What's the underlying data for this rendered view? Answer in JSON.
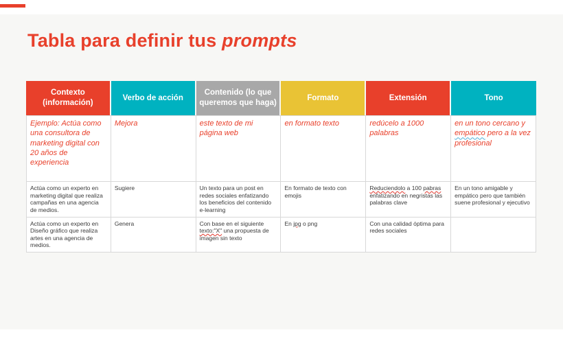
{
  "slide": {
    "title_regular": "Tabla para definir tus ",
    "title_italic": "prompts"
  },
  "colors": {
    "accent_red": "#e8402b",
    "header_teal": "#00b2c0",
    "header_gray": "#a8a8a8",
    "header_yellow": "#e9c335",
    "card_background": "#f7f7f5",
    "cell_border": "#d8d8d8",
    "body_text": "#3a3a3a",
    "spellcheck_underline": "#e0352b",
    "blue_underline": "#4fb0d8"
  },
  "table": {
    "headers": [
      {
        "label": "Contexto (información)",
        "color": "red"
      },
      {
        "label": "Verbo de acción",
        "color": "teal"
      },
      {
        "label": "Contenido (lo que queremos que haga)",
        "color": "gray"
      },
      {
        "label": "Formato",
        "color": "yellow"
      },
      {
        "label": "Extensión",
        "color": "red"
      },
      {
        "label": "Tono",
        "color": "teal"
      }
    ],
    "example_row": {
      "contexto": "Ejemplo: Actúa como una consultora de marketing digital con 20 años de experiencia",
      "verbo": "Mejora",
      "contenido": "este texto de mi página web",
      "formato": "en formato texto",
      "extension": "redúcelo a 1000 palabras",
      "tono_pre": "en un tono cercano y ",
      "tono_underlined": "empático",
      "tono_post": " pero a la vez profesional"
    },
    "row2": {
      "contexto": "Actúa como un experto en marketing digital que realiza campañas en una agencia de medios.",
      "verbo": "Sugiere",
      "contenido": "Un texto para un post en redes sociales enfatizando los beneficios del contenido e-learning",
      "formato": "En formato de texto con emojis",
      "ext_seg1": "Reduciendolo",
      "ext_seg2": " a 100 ",
      "ext_seg3": "pabras",
      "ext_seg4": " enfatizando en negristas las palabras clave",
      "tono": "En un tono amigable y empático pero que también suene profesional y ejecutivo"
    },
    "row3": {
      "contexto": "Actúa como un experto en Diseño gráfico que realiza artes en una agencia de medios.",
      "verbo": "Genera",
      "cont_seg1": "Con base en el siguiente ",
      "cont_seg2": "texto:\"X\"",
      "cont_seg3": " una propuesta de imagen sin texto",
      "fmt_seg1": "En ",
      "fmt_seg2": "jpg",
      "fmt_seg3": " o png",
      "extension": "Con una calidad óptima para redes sociales",
      "tono": ""
    }
  }
}
